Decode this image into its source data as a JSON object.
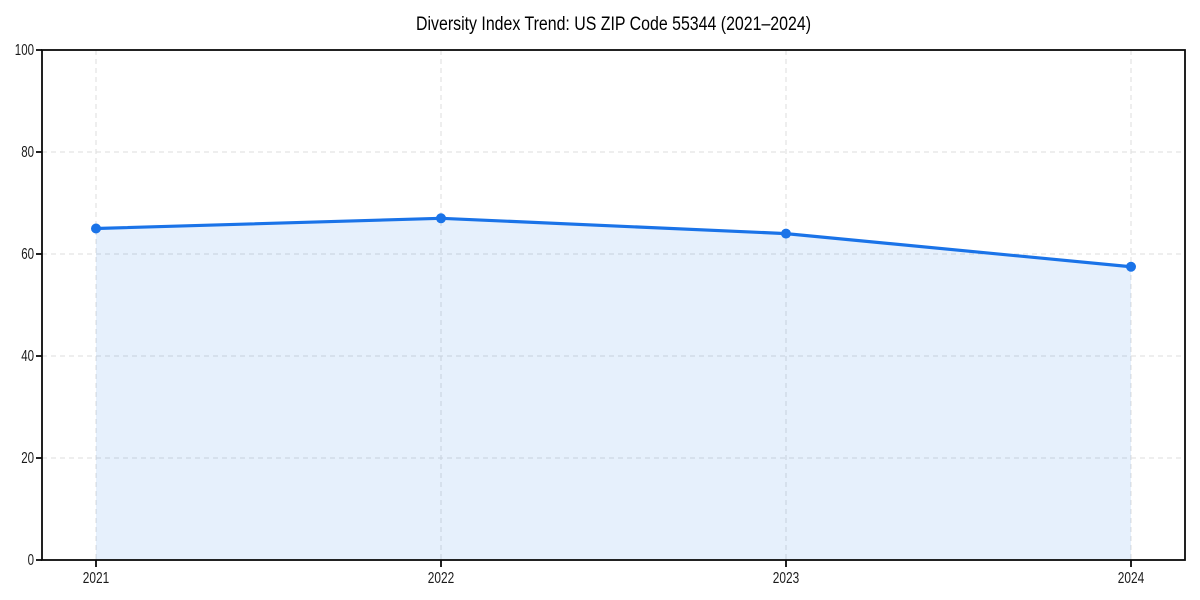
{
  "figure": {
    "background": "#ffffff"
  },
  "chart_data": {
    "type": "line",
    "title": "Diversity Index Trend: US ZIP Code 55344 (2021–2024)",
    "categories": [
      "2021",
      "2022",
      "2023",
      "2024"
    ],
    "series": [
      {
        "name": "Diversity Index",
        "values": [
          65,
          67,
          64,
          57.5
        ],
        "color": "#1a73e8",
        "marker": "circle",
        "area_fill": true
      }
    ],
    "xlabel": "",
    "ylabel": "",
    "ylim": [
      0,
      100
    ],
    "yticks": [
      0,
      20,
      40,
      60,
      80,
      100
    ],
    "grid": true,
    "grid_style": "dashed",
    "grid_color": "#dddddd",
    "legend": "none",
    "axis_color": "#0a0a0a",
    "tick_label_color": "#1a1a1a",
    "title_color": "#000000",
    "fill_opacity": 0.11
  }
}
